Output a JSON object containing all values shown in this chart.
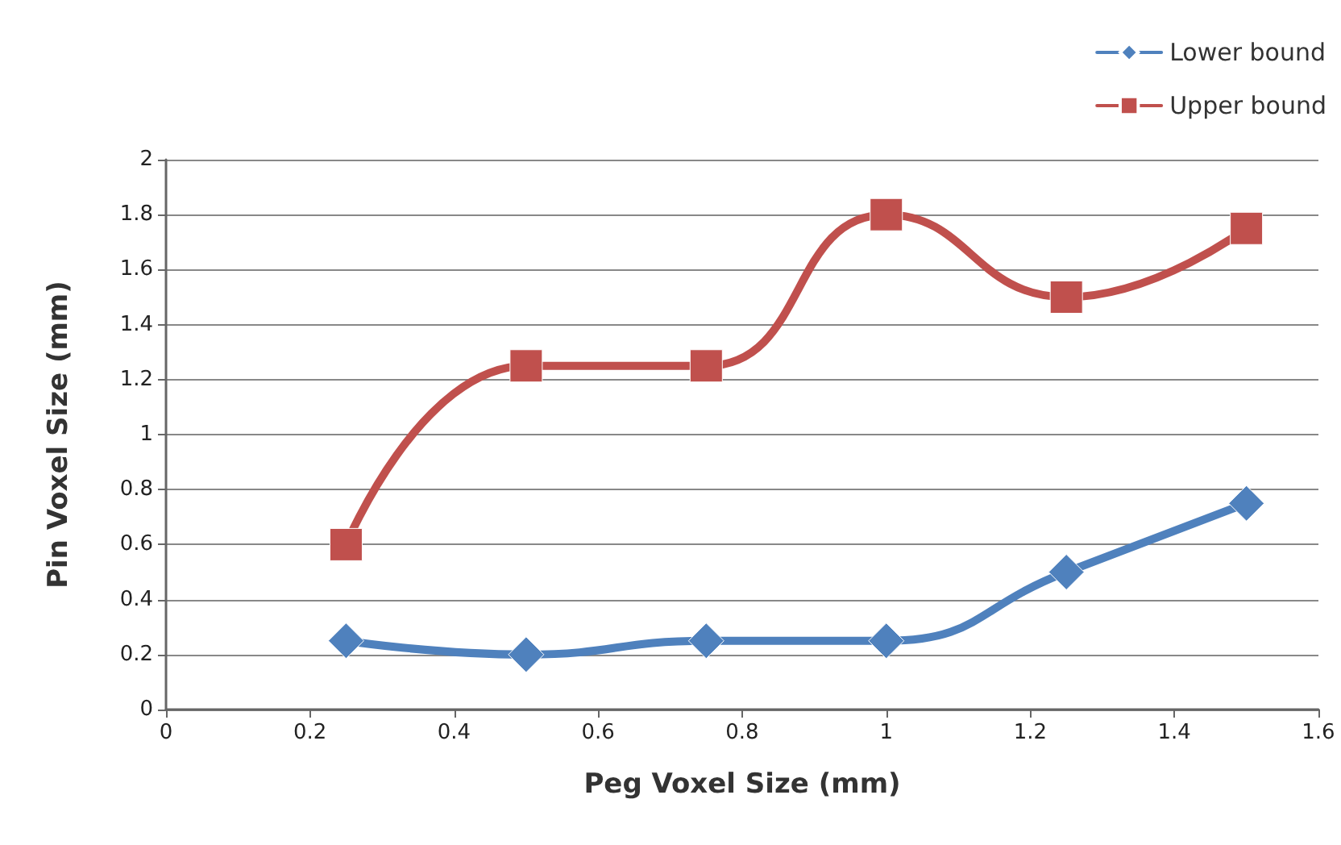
{
  "chart_data": {
    "type": "line",
    "xlabel": "Peg Voxel Size (mm)",
    "ylabel": "Pin Voxel Size (mm)",
    "x": [
      0.25,
      0.5,
      0.75,
      1,
      1.25,
      1.5
    ],
    "series": [
      {
        "name": "Lower bound",
        "color": "#4f81bd",
        "marker": "diamond",
        "values": [
          0.25,
          0.2,
          0.25,
          0.25,
          0.5,
          0.75
        ]
      },
      {
        "name": "Upper bound",
        "color": "#c0504d",
        "marker": "square",
        "values": [
          0.6,
          1.25,
          1.25,
          1.8,
          1.5,
          1.75
        ]
      }
    ],
    "xlim": [
      0,
      1.6
    ],
    "xticks": [
      0,
      0.2,
      0.4,
      0.6,
      0.8,
      1,
      1.2,
      1.4,
      1.6
    ],
    "ylim": [
      0,
      2
    ],
    "yticks": [
      0,
      0.2,
      0.4,
      0.6,
      0.8,
      1,
      1.2,
      1.4,
      1.6,
      1.8,
      2
    ],
    "grid": "y",
    "legend": "top right",
    "line_style": "solid"
  }
}
